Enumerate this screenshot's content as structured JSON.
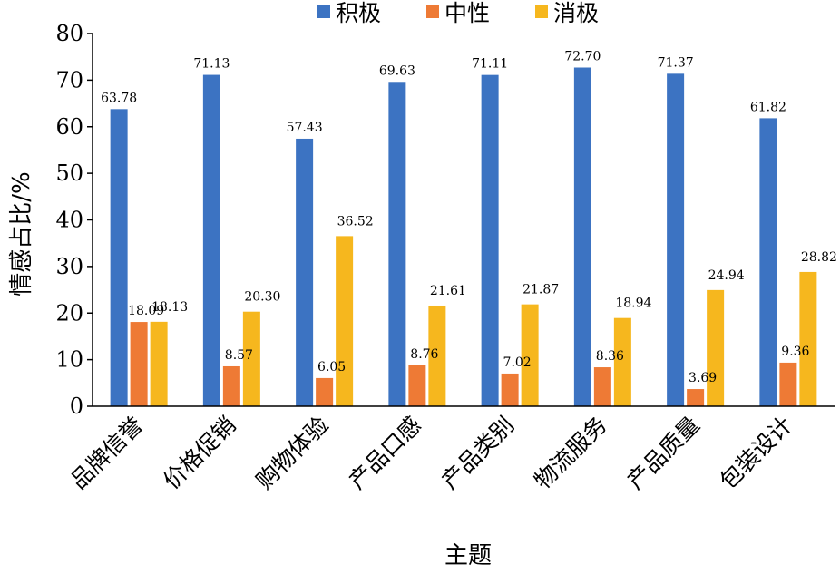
{
  "chart_data": {
    "type": "bar",
    "categories": [
      "品牌信誉",
      "价格促销",
      "购物体验",
      "产品口感",
      "产品类别",
      "物流服务",
      "产品质量",
      "包装设计"
    ],
    "series": [
      {
        "name": "积极",
        "color": "#3c73c2",
        "values": [
          63.78,
          71.13,
          57.43,
          69.63,
          71.11,
          72.7,
          71.37,
          61.82
        ]
      },
      {
        "name": "中性",
        "color": "#ee7a35",
        "values": [
          18.09,
          8.57,
          6.05,
          8.76,
          7.02,
          8.36,
          3.69,
          9.36
        ]
      },
      {
        "name": "消极",
        "color": "#f6b71e",
        "values": [
          18.13,
          20.3,
          36.52,
          21.61,
          21.87,
          18.94,
          24.94,
          28.82
        ]
      }
    ],
    "data_labels": [
      [
        "63.78",
        "71.13",
        "57.43",
        "69.63",
        "71.11",
        "72.70",
        "71.37",
        "61.82"
      ],
      [
        "18.09",
        "8.57",
        "6.05",
        "8.76",
        "7.02",
        "8.36",
        "3.69",
        "9.36"
      ],
      [
        "18.13",
        "20.30",
        "36.52",
        "21.61",
        "21.87",
        "18.94",
        "24.94",
        "28.82"
      ]
    ],
    "xlabel": "主题",
    "ylabel": "情感占比/%",
    "ylim": [
      0,
      80
    ],
    "yticks": [
      0,
      10,
      20,
      30,
      40,
      50,
      60,
      70,
      80
    ],
    "legend": "top-center",
    "grid": false
  }
}
